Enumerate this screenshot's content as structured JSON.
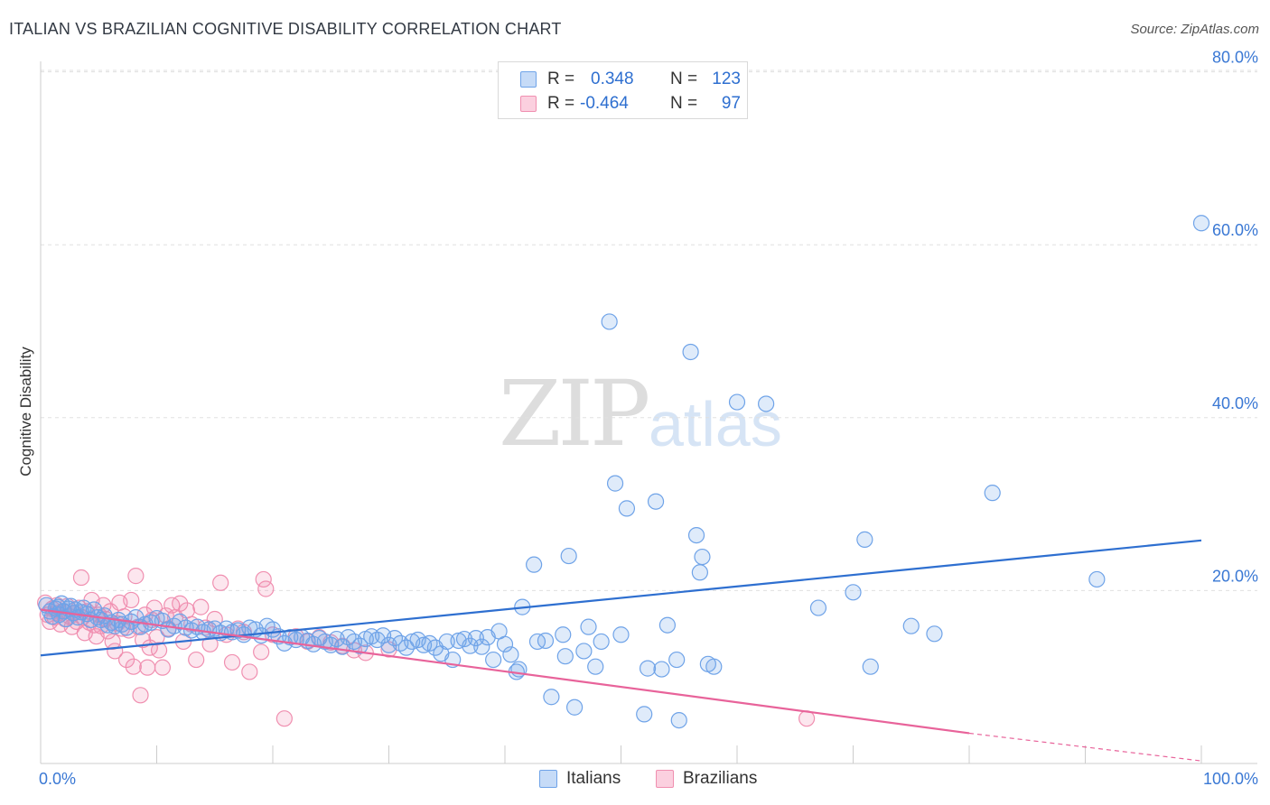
{
  "title": "ITALIAN VS BRAZILIAN COGNITIVE DISABILITY CORRELATION CHART",
  "source": "Source: ZipAtlas.com",
  "watermark": {
    "zip": "ZIP",
    "atlas": "atlas"
  },
  "legend": {
    "rows": [
      {
        "r_label": "R =",
        "r_value": "0.348",
        "n_label": "N =",
        "n_value": "123",
        "color": "#6fa3e8"
      },
      {
        "r_label": "R =",
        "r_value": "-0.464",
        "n_label": "N =",
        "n_value": "97",
        "color": "#f08fb0"
      }
    ]
  },
  "bottom_legend": [
    "Italians",
    "Brazilians"
  ],
  "chart_data": {
    "type": "scatter",
    "title": "ITALIAN VS BRAZILIAN COGNITIVE DISABILITY CORRELATION CHART",
    "xlabel": "",
    "ylabel": "Cognitive Disability",
    "xlim": [
      0,
      100
    ],
    "ylim": [
      0,
      85
    ],
    "y_ticks": [
      20,
      40,
      60,
      80
    ],
    "y_tick_labels": [
      "20.0%",
      "40.0%",
      "60.0%",
      "80.0%"
    ],
    "x_tick_labels": [
      "0.0%",
      "100.0%"
    ],
    "grid": true,
    "colors": {
      "Italians": "#6fa3e8",
      "Brazilians": "#f08fb0",
      "italian_line": "#2e6fd0",
      "brazilian_line": "#e8639a"
    },
    "series": [
      {
        "name": "Italians",
        "trend": {
          "x": [
            0,
            100
          ],
          "y": [
            12.5,
            25.8
          ]
        },
        "points": [
          [
            0.5,
            18.3
          ],
          [
            0.8,
            17.6
          ],
          [
            1.0,
            17.0
          ],
          [
            1.3,
            17.9
          ],
          [
            1.5,
            18.1
          ],
          [
            1.6,
            17.2
          ],
          [
            1.8,
            18.5
          ],
          [
            2.0,
            17.6
          ],
          [
            2.2,
            16.7
          ],
          [
            2.4,
            17.9
          ],
          [
            2.6,
            18.2
          ],
          [
            2.8,
            17.4
          ],
          [
            3.0,
            17.8
          ],
          [
            3.2,
            16.9
          ],
          [
            3.5,
            17.5
          ],
          [
            3.7,
            18.0
          ],
          [
            4.0,
            17.3
          ],
          [
            4.3,
            16.6
          ],
          [
            4.6,
            17.8
          ],
          [
            4.9,
            16.9
          ],
          [
            5.2,
            16.6
          ],
          [
            5.5,
            17.1
          ],
          [
            5.8,
            16.0
          ],
          [
            6.1,
            16.3
          ],
          [
            6.4,
            15.9
          ],
          [
            6.7,
            16.6
          ],
          [
            7.0,
            16.1
          ],
          [
            7.4,
            15.7
          ],
          [
            7.8,
            16.4
          ],
          [
            8.2,
            16.9
          ],
          [
            8.6,
            15.8
          ],
          [
            9.0,
            16.1
          ],
          [
            9.5,
            16.3
          ],
          [
            10.0,
            16.8
          ],
          [
            10.5,
            16.5
          ],
          [
            11.0,
            15.5
          ],
          [
            11.5,
            15.9
          ],
          [
            12.0,
            16.4
          ],
          [
            12.5,
            15.7
          ],
          [
            13.0,
            15.4
          ],
          [
            13.5,
            15.8
          ],
          [
            14.0,
            15.2
          ],
          [
            14.5,
            15.5
          ],
          [
            15.0,
            15.6
          ],
          [
            15.5,
            15.1
          ],
          [
            16.0,
            15.6
          ],
          [
            16.5,
            15.2
          ],
          [
            17.0,
            15.4
          ],
          [
            17.5,
            14.9
          ],
          [
            18.0,
            15.7
          ],
          [
            18.5,
            15.5
          ],
          [
            19.0,
            14.8
          ],
          [
            19.5,
            15.9
          ],
          [
            20.0,
            15.5
          ],
          [
            20.5,
            14.7
          ],
          [
            21.0,
            13.9
          ],
          [
            21.5,
            14.6
          ],
          [
            22.0,
            14.3
          ],
          [
            22.5,
            14.6
          ],
          [
            23.0,
            14.2
          ],
          [
            23.5,
            13.8
          ],
          [
            24.0,
            14.5
          ],
          [
            24.5,
            14.1
          ],
          [
            25.0,
            13.7
          ],
          [
            25.5,
            14.4
          ],
          [
            26.0,
            13.5
          ],
          [
            26.5,
            14.6
          ],
          [
            27.0,
            14.1
          ],
          [
            27.5,
            13.6
          ],
          [
            28.0,
            14.4
          ],
          [
            28.5,
            14.7
          ],
          [
            29.0,
            14.3
          ],
          [
            29.5,
            14.8
          ],
          [
            30.0,
            13.7
          ],
          [
            30.5,
            14.5
          ],
          [
            31.0,
            13.9
          ],
          [
            31.5,
            13.4
          ],
          [
            32.0,
            14.1
          ],
          [
            32.5,
            14.3
          ],
          [
            33.0,
            13.7
          ],
          [
            33.5,
            13.9
          ],
          [
            34.0,
            13.4
          ],
          [
            34.5,
            12.7
          ],
          [
            35.0,
            14.1
          ],
          [
            35.5,
            12.0
          ],
          [
            36.0,
            14.2
          ],
          [
            36.5,
            14.4
          ],
          [
            37.0,
            13.6
          ],
          [
            37.5,
            14.5
          ],
          [
            38.0,
            13.5
          ],
          [
            38.5,
            14.6
          ],
          [
            39.0,
            12.0
          ],
          [
            39.5,
            15.3
          ],
          [
            40.0,
            13.8
          ],
          [
            40.5,
            12.6
          ],
          [
            41.0,
            10.6
          ],
          [
            41.2,
            10.9
          ],
          [
            41.5,
            18.1
          ],
          [
            42.5,
            23.0
          ],
          [
            42.8,
            14.1
          ],
          [
            43.5,
            14.2
          ],
          [
            44.0,
            7.7
          ],
          [
            45.0,
            14.9
          ],
          [
            45.2,
            12.4
          ],
          [
            45.5,
            24.0
          ],
          [
            46.0,
            6.5
          ],
          [
            46.8,
            13.0
          ],
          [
            47.2,
            15.8
          ],
          [
            47.8,
            11.2
          ],
          [
            48.3,
            14.1
          ],
          [
            49.0,
            51.1
          ],
          [
            49.5,
            32.4
          ],
          [
            50.0,
            14.9
          ],
          [
            50.5,
            29.5
          ],
          [
            52.0,
            5.7
          ],
          [
            52.3,
            11.0
          ],
          [
            53.0,
            30.3
          ],
          [
            53.5,
            10.9
          ],
          [
            54.0,
            16.0
          ],
          [
            54.8,
            12.0
          ],
          [
            55.0,
            5.0
          ],
          [
            56.0,
            47.6
          ],
          [
            56.5,
            26.4
          ],
          [
            56.8,
            22.1
          ],
          [
            57.0,
            23.9
          ],
          [
            57.5,
            11.5
          ],
          [
            58.0,
            11.2
          ],
          [
            60.0,
            41.8
          ],
          [
            62.5,
            41.6
          ],
          [
            67.0,
            18.0
          ],
          [
            70.0,
            19.8
          ],
          [
            71.0,
            25.9
          ],
          [
            71.5,
            11.2
          ],
          [
            75.0,
            15.9
          ],
          [
            77.0,
            15.0
          ],
          [
            82.0,
            31.3
          ],
          [
            91.0,
            21.3
          ],
          [
            100.0,
            62.5
          ]
        ]
      },
      {
        "name": "Brazilians",
        "trend": {
          "x": [
            0,
            80
          ],
          "y": [
            17.8,
            3.5
          ]
        },
        "trend_dashed": {
          "x": [
            80,
            100
          ],
          "y": [
            3.5,
            0.3
          ]
        },
        "points": [
          [
            0.4,
            18.6
          ],
          [
            0.6,
            17.2
          ],
          [
            0.8,
            16.4
          ],
          [
            1.0,
            17.9
          ],
          [
            1.2,
            16.9
          ],
          [
            1.4,
            18.3
          ],
          [
            1.5,
            17.4
          ],
          [
            1.7,
            16.1
          ],
          [
            1.9,
            17.6
          ],
          [
            2.1,
            16.7
          ],
          [
            2.3,
            18.2
          ],
          [
            2.5,
            17.0
          ],
          [
            2.7,
            15.8
          ],
          [
            2.9,
            17.4
          ],
          [
            3.1,
            16.4
          ],
          [
            3.3,
            18.0
          ],
          [
            3.5,
            21.5
          ],
          [
            3.6,
            16.9
          ],
          [
            3.8,
            15.1
          ],
          [
            4.0,
            17.6
          ],
          [
            4.2,
            16.3
          ],
          [
            4.4,
            18.9
          ],
          [
            4.6,
            16.0
          ],
          [
            4.8,
            14.7
          ],
          [
            5.0,
            17.2
          ],
          [
            5.2,
            15.9
          ],
          [
            5.4,
            18.3
          ],
          [
            5.6,
            16.7
          ],
          [
            5.8,
            15.3
          ],
          [
            6.0,
            17.6
          ],
          [
            6.2,
            14.1
          ],
          [
            6.4,
            13.0
          ],
          [
            6.6,
            16.2
          ],
          [
            6.8,
            18.6
          ],
          [
            7.0,
            15.6
          ],
          [
            7.2,
            17.0
          ],
          [
            7.4,
            12.0
          ],
          [
            7.6,
            15.4
          ],
          [
            7.8,
            18.9
          ],
          [
            8.0,
            11.2
          ],
          [
            8.2,
            21.7
          ],
          [
            8.4,
            15.8
          ],
          [
            8.6,
            7.9
          ],
          [
            8.8,
            14.3
          ],
          [
            9.0,
            17.2
          ],
          [
            9.2,
            11.1
          ],
          [
            9.4,
            13.4
          ],
          [
            9.6,
            16.6
          ],
          [
            9.8,
            18.0
          ],
          [
            10.0,
            14.6
          ],
          [
            10.2,
            13.1
          ],
          [
            10.5,
            11.1
          ],
          [
            10.8,
            17.1
          ],
          [
            11.0,
            15.6
          ],
          [
            11.3,
            18.3
          ],
          [
            11.6,
            16.9
          ],
          [
            12.0,
            18.5
          ],
          [
            12.3,
            14.1
          ],
          [
            12.6,
            17.7
          ],
          [
            13.0,
            16.1
          ],
          [
            13.4,
            12.0
          ],
          [
            13.8,
            18.1
          ],
          [
            14.2,
            15.7
          ],
          [
            14.6,
            13.8
          ],
          [
            15.0,
            16.7
          ],
          [
            15.5,
            20.9
          ],
          [
            16.0,
            14.9
          ],
          [
            16.5,
            11.7
          ],
          [
            17.0,
            15.6
          ],
          [
            17.5,
            15.2
          ],
          [
            18.0,
            10.6
          ],
          [
            19.0,
            12.9
          ],
          [
            19.2,
            21.3
          ],
          [
            19.4,
            20.2
          ],
          [
            20.0,
            14.9
          ],
          [
            21.0,
            5.2
          ],
          [
            22.0,
            14.7
          ],
          [
            23.0,
            14.1
          ],
          [
            24.0,
            14.6
          ],
          [
            25.0,
            14.0
          ],
          [
            26.0,
            13.6
          ],
          [
            27.0,
            13.1
          ],
          [
            28.0,
            12.8
          ],
          [
            30.0,
            13.2
          ],
          [
            66.0,
            5.2
          ]
        ]
      }
    ]
  }
}
